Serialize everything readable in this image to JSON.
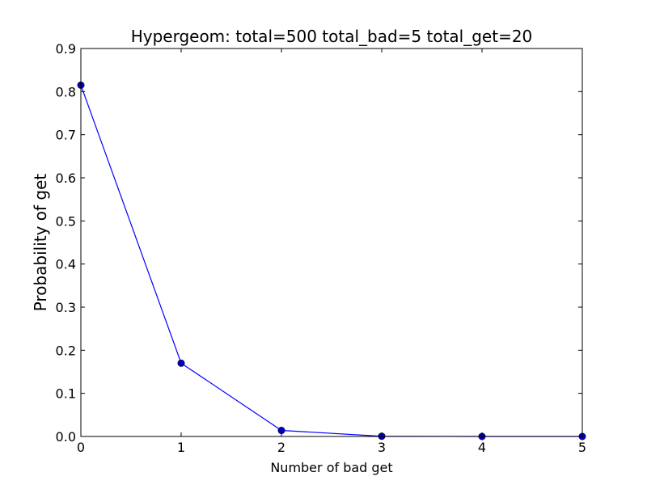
{
  "chart_data": {
    "type": "line",
    "title": "Hypergeom: total=500 total_bad=5 total_get=20",
    "xlabel": "Number of bad get",
    "ylabel": "Probability of get",
    "x": [
      0,
      1,
      2,
      3,
      4,
      5
    ],
    "series": [
      {
        "values": [
          0.815,
          0.17,
          0.014,
          0.0005,
          1e-05,
          1e-07
        ]
      }
    ],
    "xlim": [
      0,
      5
    ],
    "ylim": [
      0,
      0.9
    ],
    "xticks": [
      "0",
      "1",
      "2",
      "3",
      "4",
      "5"
    ],
    "yticks": [
      "0.0",
      "0.1",
      "0.2",
      "0.3",
      "0.4",
      "0.5",
      "0.6",
      "0.7",
      "0.8",
      "0.9"
    ],
    "grid": false,
    "marker": "circle",
    "line_color": "#0000ff",
    "marker_color": "#0000bf"
  }
}
